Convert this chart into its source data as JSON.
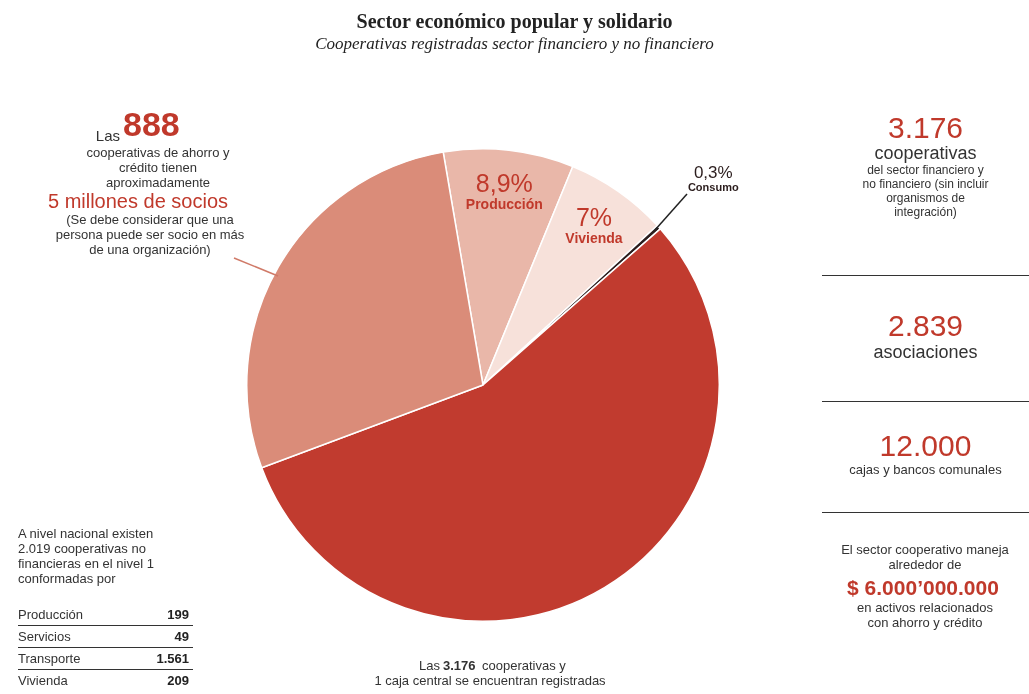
{
  "chart_data": [
    {
      "type": "pie",
      "title": "Sector económico popular y solidario",
      "subtitle": "Cooperativas registradas sector financiero y no financiero",
      "categories": [
        "Producción",
        "Vivienda",
        "Consumo",
        null,
        null
      ],
      "values": [
        8.9,
        7,
        0.3,
        55.8,
        28
      ],
      "colors": [
        "#e9b7a9",
        "#f7e1da",
        "#2b1d1d",
        "#c13b2f",
        "#da8c79"
      ],
      "value_labels": [
        "8,9%",
        "7%",
        "0,3%",
        null,
        null
      ],
      "annotations": [
        "Las",
        "888",
        "cooperativas de ahorro y crédito tienen  aproximadamente",
        "5 millones de socios",
        "(Se debe considerar que una persona puede ser socio en más de una organización)",
        "3.176",
        "cooperativas",
        "del sector financiero y no financiero (sin incluir organismos de integración)",
        "2.839",
        "asociaciones",
        "12.000",
        "cajas y bancos comunales",
        "El sector cooperativo maneja alrededor de",
        "$ 6.000’000.000",
        "en activos relacionados con ahorro y crédito",
        "Las",
        "3.176",
        "cooperativas y",
        "1 caja central se encuentran registradas"
      ]
    },
    {
      "type": "other",
      "title": "A nivel nacional existen 2.019 cooperativas no financieras en el nivel 1 conformadas por",
      "categories": [
        "Producción",
        "Servicios",
        "Transporte",
        "Vivienda"
      ],
      "values": [
        199,
        49,
        1561,
        209
      ],
      "value_labels": [
        "199",
        "49",
        "1.561",
        "209"
      ]
    }
  ]
}
